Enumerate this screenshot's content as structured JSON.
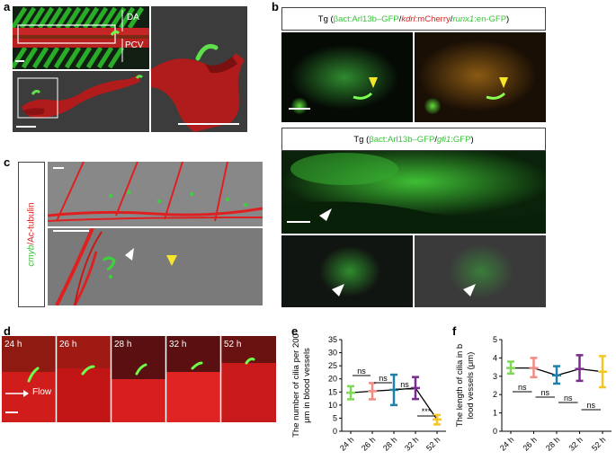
{
  "panels": {
    "a": {
      "letter": "a",
      "labels": {
        "da": "DA",
        "pcv": "PCV"
      }
    },
    "b": {
      "letter": "b",
      "title1": {
        "prefix": "Tg (",
        "p1": "βact:Arl13b–GFP",
        "sep1": " /",
        "p2": "kdrl",
        "p3": ":mCherry",
        "sep2": "/",
        "p4": "runx1",
        "p5": ":en-GFP",
        "suffix": ")"
      },
      "title2": {
        "prefix": "Tg (",
        "p1": "βact:Arl13b–GFP",
        "sep1": " /",
        "p2": "gfi1",
        "p3": ":GFP",
        "suffix": ")"
      }
    },
    "c": {
      "letter": "c",
      "side_label": {
        "part1": "cmyb",
        "part2": "/Ac-tubulin"
      }
    },
    "d": {
      "letter": "d",
      "times": [
        "24 h",
        "26 h",
        "28 h",
        "32 h",
        "52 h"
      ],
      "flow": "Flow"
    },
    "e": {
      "letter": "e"
    },
    "f": {
      "letter": "f"
    }
  },
  "colors": {
    "t24": "#7ed957",
    "t26": "#f08c84",
    "t28": "#1f80a8",
    "t32": "#7b2d8e",
    "t52": "#f2c624",
    "mean_line": "#000000"
  },
  "chart_data": [
    {
      "type": "scatter",
      "panel": "e",
      "ylabel": "The number of cilia per 200 μm in blood vessels",
      "categories": [
        "24 h",
        "26 h",
        "28 h",
        "32 h",
        "52 h"
      ],
      "yticks": [
        0,
        5,
        10,
        15,
        20,
        25,
        30,
        35
      ],
      "ylim": [
        0,
        35
      ],
      "values": [
        14.7,
        15.3,
        15.8,
        16.5,
        4.5
      ],
      "err_low": [
        12.2,
        12.2,
        10.0,
        12.3,
        2.6
      ],
      "err_high": [
        17.2,
        18.4,
        21.6,
        20.7,
        6.2
      ],
      "comparisons": [
        "ns",
        "ns",
        "ns",
        "***"
      ]
    },
    {
      "type": "scatter",
      "panel": "f",
      "ylabel": "The length of cilia in blood vessels (μm)",
      "categories": [
        "24 h",
        "26 h",
        "28 h",
        "32 h",
        "52 h"
      ],
      "yticks": [
        0,
        1,
        2,
        3,
        4,
        5
      ],
      "ylim": [
        0,
        5
      ],
      "values": [
        3.45,
        3.45,
        3.05,
        3.4,
        3.25
      ],
      "err_low": [
        3.15,
        2.95,
        2.6,
        2.75,
        2.4
      ],
      "err_high": [
        3.8,
        4.0,
        3.55,
        4.15,
        4.1
      ],
      "comparisons": [
        "ns",
        "ns",
        "ns",
        "ns"
      ]
    }
  ]
}
